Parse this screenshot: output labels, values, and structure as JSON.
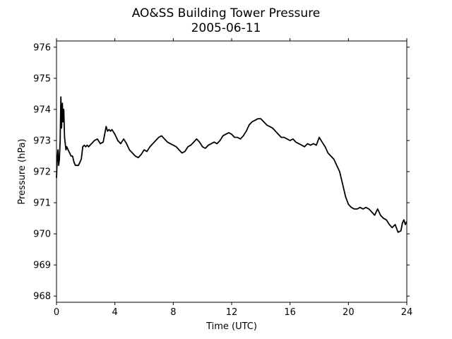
{
  "chart_data": {
    "type": "line",
    "title": "AO&SS Building Tower Pressure",
    "subtitle": "2005-06-11",
    "xlabel": "Time (UTC)",
    "ylabel": "Pressure (hPa)",
    "xlim": [
      0,
      24
    ],
    "ylim": [
      967.8,
      976.2
    ],
    "xticks": [
      0,
      4,
      8,
      12,
      16,
      20,
      24
    ],
    "yticks": [
      968,
      969,
      970,
      971,
      972,
      973,
      974,
      975,
      976
    ],
    "grid": false,
    "legend": "none",
    "line_color": "#000000",
    "series": [
      {
        "x": [
          0,
          0.05,
          0.1,
          0.15,
          0.2,
          0.25,
          0.3,
          0.35,
          0.4,
          0.45,
          0.5,
          0.55,
          0.6,
          0.65,
          0.7,
          0.8,
          0.9,
          1.0,
          1.1,
          1.2,
          1.3,
          1.4,
          1.5,
          1.6,
          1.7,
          1.8,
          1.9,
          2.0,
          2.1,
          2.2,
          2.4,
          2.6,
          2.8,
          3.0,
          3.2,
          3.4,
          3.5,
          3.6,
          3.7,
          3.8,
          4.0,
          4.2,
          4.4,
          4.6,
          4.8,
          5.0,
          5.2,
          5.4,
          5.6,
          5.8,
          6.0,
          6.2,
          6.4,
          6.6,
          6.8,
          7.0,
          7.2,
          7.4,
          7.6,
          7.8,
          8.0,
          8.2,
          8.4,
          8.6,
          8.8,
          9.0,
          9.2,
          9.4,
          9.6,
          9.8,
          10.0,
          10.2,
          10.4,
          10.6,
          10.8,
          11.0,
          11.2,
          11.4,
          11.6,
          11.8,
          12.0,
          12.2,
          12.4,
          12.6,
          12.8,
          13.0,
          13.2,
          13.4,
          13.6,
          13.8,
          14.0,
          14.2,
          14.4,
          14.6,
          14.8,
          15.0,
          15.2,
          15.4,
          15.6,
          15.8,
          16.0,
          16.2,
          16.4,
          16.6,
          16.8,
          17.0,
          17.2,
          17.4,
          17.6,
          17.8,
          18.0,
          18.2,
          18.4,
          18.6,
          18.8,
          19.0,
          19.2,
          19.4,
          19.6,
          19.8,
          20.0,
          20.2,
          20.4,
          20.6,
          20.8,
          21.0,
          21.2,
          21.4,
          21.6,
          21.8,
          22.0,
          22.2,
          22.4,
          22.6,
          22.8,
          23.0,
          23.2,
          23.4,
          23.6,
          23.7,
          23.8,
          23.9,
          24.0
        ],
        "y": [
          971.8,
          972.4,
          972.7,
          972.2,
          972.4,
          973.0,
          974.4,
          973.4,
          974.2,
          973.6,
          974.0,
          973.1,
          972.9,
          972.7,
          972.8,
          972.7,
          972.6,
          972.5,
          972.5,
          972.3,
          972.2,
          972.2,
          972.2,
          972.3,
          972.4,
          972.8,
          972.85,
          972.8,
          972.85,
          972.8,
          972.9,
          973.0,
          973.05,
          972.9,
          972.95,
          973.45,
          973.3,
          973.35,
          973.3,
          973.35,
          973.2,
          973.0,
          972.9,
          973.05,
          972.9,
          972.7,
          972.6,
          972.5,
          972.45,
          972.55,
          972.7,
          972.65,
          972.8,
          972.9,
          973.0,
          973.1,
          973.15,
          973.05,
          972.95,
          972.9,
          972.85,
          972.8,
          972.7,
          972.6,
          972.65,
          972.8,
          972.85,
          972.95,
          973.05,
          972.95,
          972.8,
          972.75,
          972.85,
          972.9,
          972.95,
          972.9,
          973.0,
          973.15,
          973.2,
          973.25,
          973.2,
          973.1,
          973.1,
          973.05,
          973.15,
          973.3,
          973.5,
          973.6,
          973.65,
          973.7,
          973.7,
          973.6,
          973.5,
          973.45,
          973.4,
          973.3,
          973.2,
          973.1,
          973.1,
          973.05,
          973.0,
          973.05,
          972.95,
          972.9,
          972.85,
          972.8,
          972.9,
          972.85,
          972.9,
          972.85,
          973.1,
          972.95,
          972.8,
          972.6,
          972.5,
          972.4,
          972.2,
          972.0,
          971.6,
          971.2,
          970.95,
          970.85,
          970.8,
          970.8,
          970.85,
          970.8,
          970.85,
          970.8,
          970.7,
          970.6,
          970.8,
          970.6,
          970.5,
          970.45,
          970.3,
          970.2,
          970.3,
          970.05,
          970.1,
          970.35,
          970.45,
          970.3,
          970.4
        ]
      }
    ]
  }
}
